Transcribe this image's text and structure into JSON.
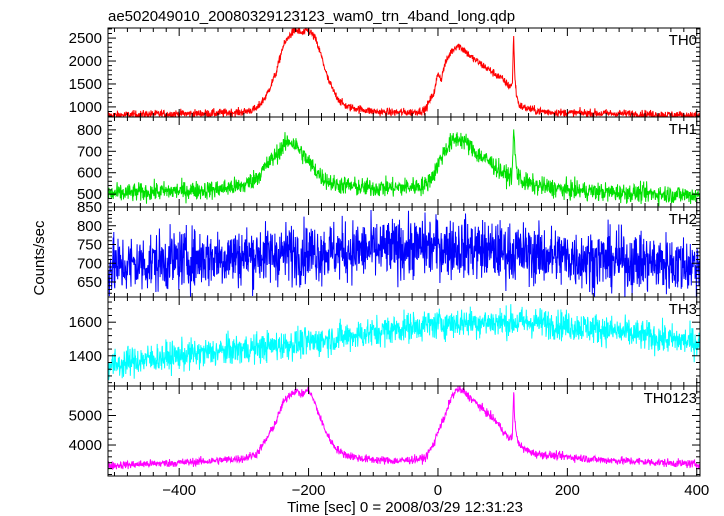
{
  "chart_data": {
    "type": "line",
    "title": "ae502049010_20080329123123_wam0_trn_4band_long.qdp",
    "xlabel": "Time [sec] 0 = 2008/03/29 12:31:23",
    "ylabel": "Counts/sec",
    "xlim": [
      -510,
      405
    ],
    "x_ticks": [
      -400,
      -200,
      0,
      200,
      400
    ],
    "x_tick_labels": [
      "−400",
      "−200",
      "0",
      "200",
      "400"
    ],
    "grid": false,
    "panels": [
      {
        "name": "TH0",
        "color": "#ff0000",
        "ylim": [
          780,
          2720
        ],
        "y_ticks": [
          1000,
          1500,
          2000,
          2500
        ],
        "x": [
          -510,
          -450,
          -400,
          -350,
          -300,
          -280,
          -265,
          -250,
          -240,
          -230,
          -220,
          -210,
          -200,
          -190,
          -180,
          -170,
          -160,
          -150,
          -140,
          -120,
          -100,
          -80,
          -60,
          -40,
          -20,
          -5,
          0,
          5,
          10,
          20,
          30,
          40,
          50,
          60,
          70,
          80,
          90,
          100,
          110,
          115,
          117,
          119,
          121,
          125,
          130,
          140,
          150,
          160,
          180,
          200,
          250,
          300,
          350,
          400
        ],
        "values": [
          810,
          840,
          850,
          860,
          890,
          960,
          1250,
          1750,
          2300,
          2550,
          2680,
          2600,
          2680,
          2500,
          2100,
          1600,
          1300,
          1100,
          1000,
          950,
          900,
          880,
          880,
          880,
          930,
          1350,
          1750,
          1600,
          1900,
          2200,
          2350,
          2250,
          2100,
          2000,
          1900,
          1800,
          1700,
          1600,
          1450,
          1500,
          2550,
          1600,
          1300,
          1050,
          1000,
          960,
          920,
          900,
          880,
          870,
          860,
          850,
          830,
          810
        ],
        "noise": 45
      },
      {
        "name": "TH1",
        "color": "#00e000",
        "ylim": [
          440,
          860
        ],
        "y_ticks": [
          500,
          600,
          700,
          800
        ],
        "x": [
          -510,
          -450,
          -400,
          -350,
          -300,
          -280,
          -260,
          -240,
          -230,
          -220,
          -210,
          -200,
          -180,
          -160,
          -140,
          -120,
          -100,
          -60,
          -20,
          -5,
          0,
          10,
          20,
          30,
          40,
          50,
          60,
          80,
          100,
          110,
          115,
          117,
          119,
          122,
          130,
          150,
          200,
          250,
          300,
          350,
          400
        ],
        "values": [
          500,
          510,
          515,
          520,
          540,
          580,
          650,
          720,
          750,
          730,
          690,
          650,
          580,
          545,
          540,
          530,
          530,
          530,
          540,
          600,
          640,
          700,
          740,
          760,
          750,
          720,
          690,
          650,
          600,
          580,
          600,
          800,
          700,
          600,
          560,
          540,
          520,
          510,
          505,
          500,
          495
        ],
        "noise": 22
      },
      {
        "name": "TH2",
        "color": "#0000ff",
        "ylim": [
          610,
          850
        ],
        "y_ticks": [
          650,
          700,
          750,
          800,
          850
        ],
        "x": [
          -510,
          -450,
          -400,
          -300,
          -200,
          -100,
          0,
          50,
          100,
          150,
          200,
          300,
          400
        ],
        "values": [
          690,
          700,
          710,
          720,
          730,
          735,
          745,
          740,
          730,
          725,
          715,
          705,
          695
        ],
        "noise": 40
      },
      {
        "name": "TH3",
        "color": "#00ffff",
        "ylim": [
          1220,
          1750
        ],
        "y_ticks": [
          1400,
          1600
        ],
        "x": [
          -510,
          -450,
          -400,
          -350,
          -300,
          -250,
          -200,
          -150,
          -100,
          -50,
          0,
          50,
          100,
          150,
          200,
          250,
          300,
          350,
          400
        ],
        "values": [
          1340,
          1380,
          1400,
          1420,
          1440,
          1460,
          1480,
          1510,
          1540,
          1570,
          1590,
          1600,
          1600,
          1600,
          1580,
          1560,
          1530,
          1500,
          1480
        ],
        "noise": 45
      },
      {
        "name": "TH0123",
        "color": "#ff00ff",
        "ylim": [
          2950,
          6000
        ],
        "y_ticks": [
          4000,
          5000
        ],
        "x": [
          -510,
          -450,
          -400,
          -350,
          -300,
          -280,
          -265,
          -250,
          -240,
          -230,
          -220,
          -210,
          -200,
          -190,
          -180,
          -170,
          -160,
          -150,
          -140,
          -120,
          -100,
          -60,
          -20,
          -5,
          0,
          10,
          20,
          30,
          40,
          50,
          60,
          70,
          80,
          90,
          100,
          110,
          115,
          117,
          119,
          122,
          130,
          150,
          200,
          250,
          300,
          350,
          400
        ],
        "values": [
          3300,
          3360,
          3400,
          3460,
          3550,
          3700,
          4200,
          4800,
          5400,
          5700,
          5850,
          5700,
          5900,
          5400,
          4800,
          4300,
          3950,
          3750,
          3650,
          3550,
          3500,
          3460,
          3550,
          4100,
          4500,
          4900,
          5600,
          5900,
          5800,
          5600,
          5400,
          5200,
          5000,
          4800,
          4500,
          4200,
          4300,
          5800,
          4800,
          4200,
          3900,
          3700,
          3600,
          3500,
          3450,
          3400,
          3350
        ],
        "noise": 70
      }
    ]
  }
}
